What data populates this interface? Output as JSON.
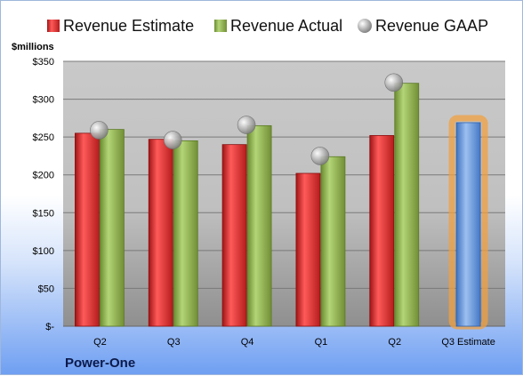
{
  "company": "Power-One",
  "chart_data": {
    "type": "bar",
    "unit_label": "$millions",
    "categories": [
      "Q2",
      "Q3",
      "Q4",
      "Q1",
      "Q2",
      "Q3 Estimate"
    ],
    "series": [
      {
        "name": "Revenue Estimate",
        "kind": "bar",
        "color": "#d42a2a",
        "values": [
          255,
          247,
          240,
          202,
          252,
          null
        ]
      },
      {
        "name": "Revenue Actual",
        "kind": "bar",
        "color": "#8db04a",
        "values": [
          260,
          245,
          265,
          224,
          321,
          null
        ]
      },
      {
        "name": "Revenue GAAP",
        "kind": "marker",
        "color": "#b8b8b8",
        "values": [
          259,
          246,
          266,
          225,
          322,
          null
        ]
      },
      {
        "name": "Q3 Estimate",
        "kind": "highlight-bar",
        "color": "#5b8fd6",
        "values": [
          null,
          null,
          null,
          null,
          null,
          269
        ]
      }
    ],
    "y_tick_labels": [
      "$-",
      "$50",
      "$100",
      "$150",
      "$200",
      "$250",
      "$300",
      "$350"
    ],
    "ylim": [
      0,
      350
    ],
    "grid": true,
    "legend_position": "top"
  }
}
